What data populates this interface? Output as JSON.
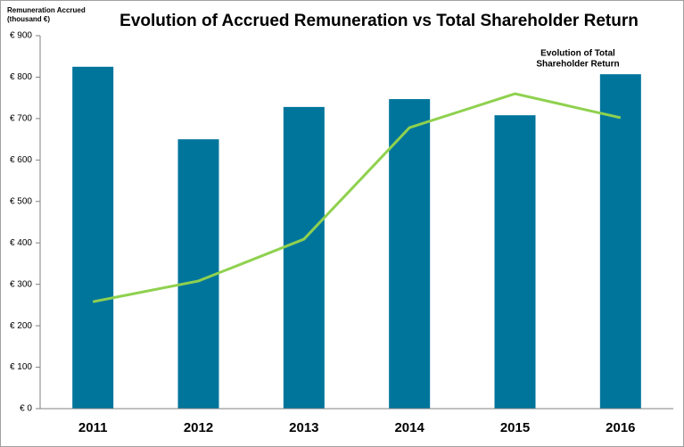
{
  "chart_data": {
    "type": "bar",
    "title": "Evolution of Accrued Remuneration vs Total Shareholder Return",
    "ylabel": [
      "Remuneration Accrued",
      "(thousand €)"
    ],
    "annotation": [
      "Evolution of Total",
      "Shareholder Return"
    ],
    "categories": [
      "2011",
      "2012",
      "2013",
      "2014",
      "2015",
      "2016"
    ],
    "series": [
      {
        "type": "bar",
        "color": "#00759c",
        "values": [
          825,
          650,
          728,
          747,
          708,
          807
        ]
      },
      {
        "type": "line",
        "color": "#8fd14f",
        "values": [
          258,
          308,
          409,
          678,
          760,
          702
        ]
      }
    ],
    "ylim": [
      0,
      900
    ],
    "yticks": [
      {
        "value": 0,
        "label": "€ 0"
      },
      {
        "value": 100,
        "label": "€ 100"
      },
      {
        "value": 200,
        "label": "€ 200"
      },
      {
        "value": 300,
        "label": "€ 300"
      },
      {
        "value": 400,
        "label": "€ 400"
      },
      {
        "value": 500,
        "label": "€ 500"
      },
      {
        "value": 600,
        "label": "€ 600"
      },
      {
        "value": 700,
        "label": "€ 700"
      },
      {
        "value": 800,
        "label": "€ 800"
      },
      {
        "value": 900,
        "label": "€ 900"
      }
    ]
  }
}
